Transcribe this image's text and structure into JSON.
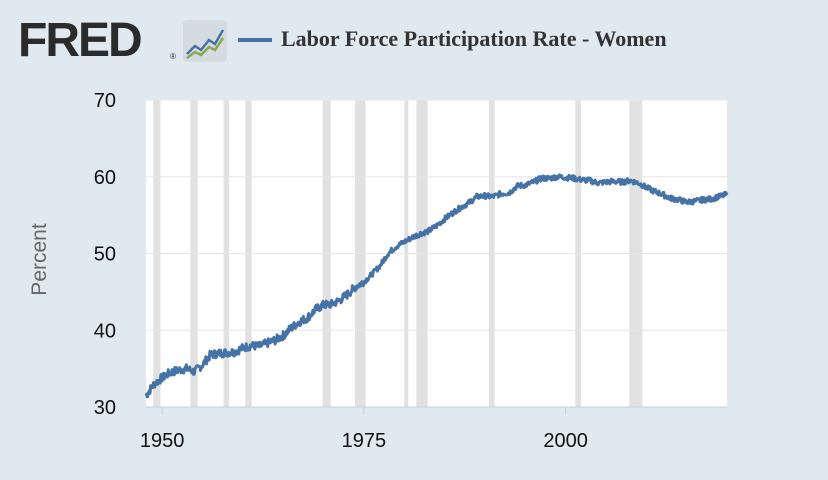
{
  "header": {
    "logo_text": "FRED",
    "logo_mark": "®",
    "graph_icon": "line-chart-icon"
  },
  "colors": {
    "background": "#e1e9f0",
    "plot_background": "#ffffff",
    "series": "#4572a7",
    "recession": "#e1e1e1",
    "grid": "#e6e6e6"
  },
  "chart_data": {
    "type": "line",
    "title": "Labor Force Participation Rate - Women",
    "ylabel": "Percent",
    "xlabel": "",
    "x_range": [
      1948,
      2020
    ],
    "ylim": [
      30,
      70
    ],
    "y_ticks": [
      30,
      40,
      50,
      60,
      70
    ],
    "x_ticks": [
      1950,
      1975,
      2000
    ],
    "grid": "horizontal",
    "recessions": [
      [
        1948.9,
        1949.8
      ],
      [
        1953.5,
        1954.4
      ],
      [
        1957.6,
        1958.3
      ],
      [
        1960.3,
        1961.1
      ],
      [
        1969.9,
        1970.9
      ],
      [
        1973.9,
        1975.2
      ],
      [
        1980.0,
        1980.5
      ],
      [
        1981.5,
        1982.9
      ],
      [
        1990.5,
        1991.2
      ],
      [
        2001.2,
        2001.9
      ],
      [
        2007.9,
        2009.5
      ]
    ],
    "series": [
      {
        "name": "Labor Force Participation Rate - Women",
        "x": [
          1948,
          1949,
          1950,
          1951,
          1952,
          1953,
          1954,
          1955,
          1956,
          1957,
          1958,
          1959,
          1960,
          1961,
          1962,
          1963,
          1964,
          1965,
          1966,
          1967,
          1968,
          1969,
          1970,
          1971,
          1972,
          1973,
          1974,
          1975,
          1976,
          1977,
          1978,
          1979,
          1980,
          1981,
          1982,
          1983,
          1984,
          1985,
          1986,
          1987,
          1988,
          1989,
          1990,
          1991,
          1992,
          1993,
          1994,
          1995,
          1996,
          1997,
          1998,
          1999,
          2000,
          2001,
          2002,
          2003,
          2004,
          2005,
          2006,
          2007,
          2008,
          2009,
          2010,
          2011,
          2012,
          2013,
          2014,
          2015,
          2016,
          2017,
          2018,
          2019,
          2020
        ],
        "values": [
          31.5,
          33.0,
          33.8,
          34.5,
          34.8,
          35.0,
          34.6,
          35.5,
          36.8,
          37.0,
          37.1,
          37.2,
          37.7,
          38.0,
          37.9,
          38.3,
          38.7,
          39.3,
          40.3,
          41.1,
          41.6,
          42.7,
          43.3,
          43.4,
          43.9,
          44.7,
          45.7,
          46.3,
          47.3,
          48.4,
          50.0,
          50.9,
          51.5,
          52.1,
          52.6,
          52.9,
          53.6,
          54.5,
          55.3,
          56.0,
          56.6,
          57.4,
          57.5,
          57.4,
          57.8,
          57.9,
          58.8,
          58.9,
          59.3,
          59.8,
          59.8,
          60.0,
          59.9,
          59.8,
          59.6,
          59.5,
          59.2,
          59.3,
          59.4,
          59.3,
          59.5,
          59.2,
          58.6,
          58.1,
          57.7,
          57.2,
          57.0,
          56.7,
          56.8,
          57.0,
          57.1,
          57.4,
          57.7
        ]
      }
    ]
  }
}
